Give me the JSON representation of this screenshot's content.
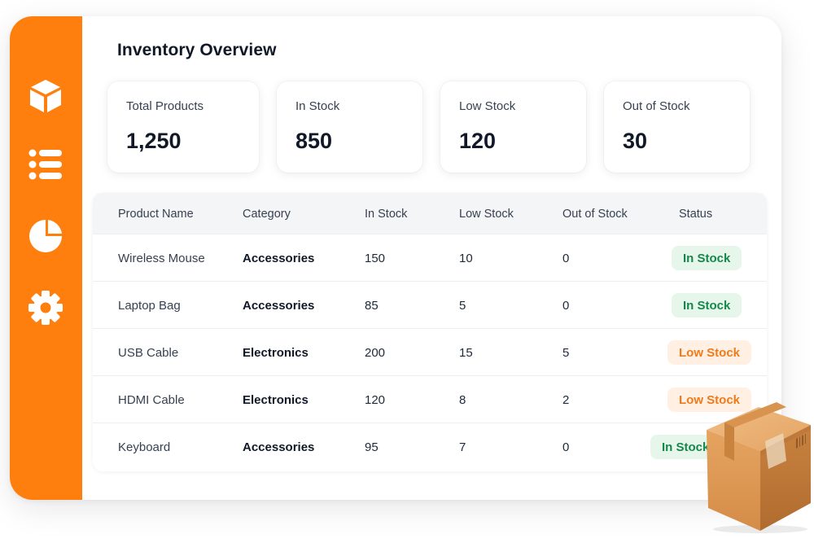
{
  "sidebar": {
    "items": [
      {
        "icon": "box-icon"
      },
      {
        "icon": "list-icon"
      },
      {
        "icon": "pie-chart-icon"
      },
      {
        "icon": "gear-icon"
      }
    ]
  },
  "colors": {
    "sidebar": "#ff7f0e",
    "in_stock_bg": "#e6f6ea",
    "in_stock_text": "#16874a",
    "low_stock_bg": "#fff0e3",
    "low_stock_text": "#f07a1a"
  },
  "page": {
    "title": "Inventory Overview"
  },
  "stats": [
    {
      "label": "Total Products",
      "value": "1,250"
    },
    {
      "label": "In Stock",
      "value": "850"
    },
    {
      "label": "Low Stock",
      "value": "120"
    },
    {
      "label": "Out of Stock",
      "value": "30"
    }
  ],
  "table": {
    "headers": [
      "Product Name",
      "Category",
      "In Stock",
      "Low Stock",
      "Out of Stock",
      "Status"
    ],
    "rows": [
      {
        "name": "Wireless Mouse",
        "category": "Accessories",
        "in_stock": "150",
        "low_stock": "10",
        "out_of_stock": "0",
        "status": "In Stock"
      },
      {
        "name": "Laptop Bag",
        "category": "Accessories",
        "in_stock": "85",
        "low_stock": "5",
        "out_of_stock": "0",
        "status": "In Stock"
      },
      {
        "name": "USB Cable",
        "category": "Electronics",
        "in_stock": "200",
        "low_stock": "15",
        "out_of_stock": "5",
        "status": "Low Stock"
      },
      {
        "name": "HDMI Cable",
        "category": "Electronics",
        "in_stock": "120",
        "low_stock": "8",
        "out_of_stock": "2",
        "status": "Low Stock"
      },
      {
        "name": "Keyboard",
        "category": "Accessories",
        "in_stock": "95",
        "low_stock": "7",
        "out_of_stock": "0",
        "status": "In Stock"
      }
    ]
  },
  "illustration": {
    "icon": "cardboard-box-icon"
  }
}
